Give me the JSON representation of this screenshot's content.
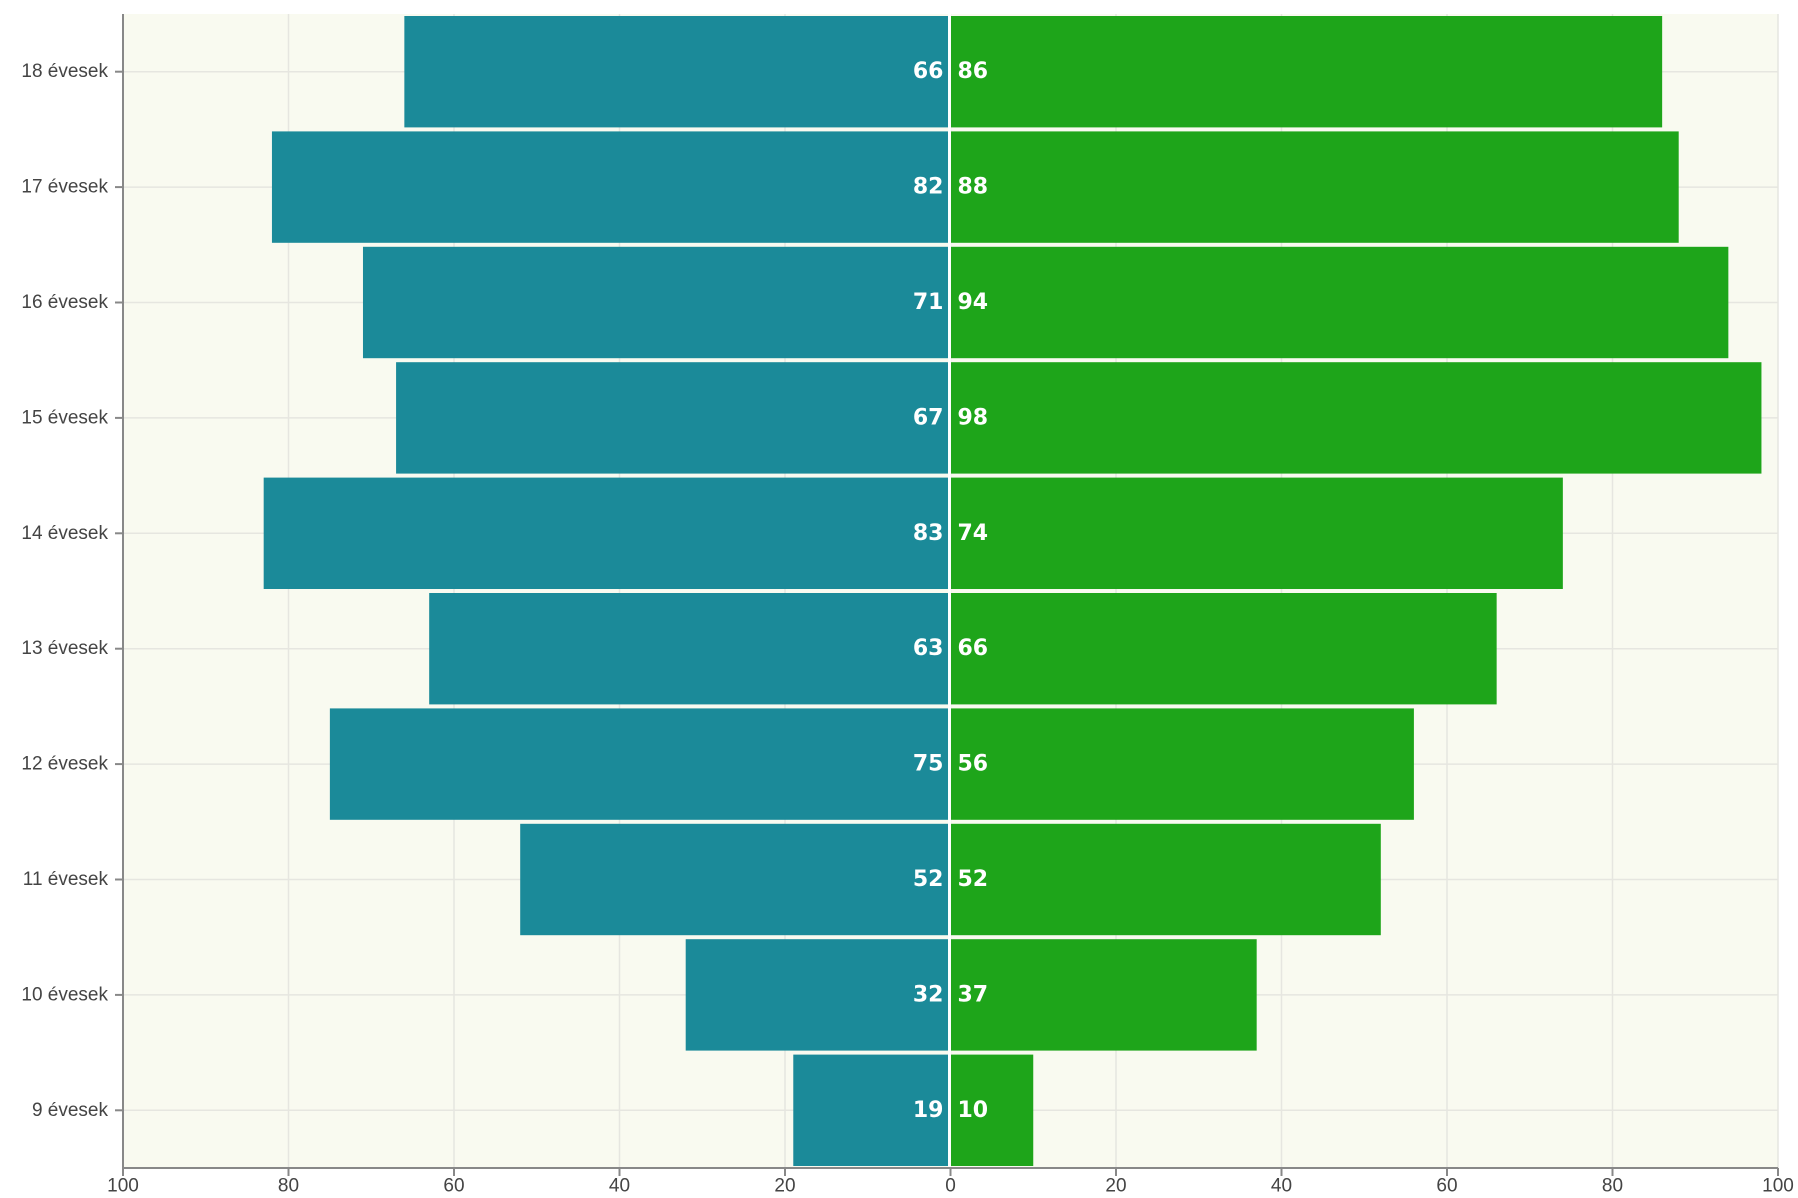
{
  "chart_data": {
    "type": "bar",
    "orientation": "horizontal",
    "layout": "population-pyramid",
    "categories": [
      "18 évesek",
      "17 évesek",
      "16 évesek",
      "15 évesek",
      "14 évesek",
      "13 évesek",
      "12 évesek",
      "11 évesek",
      "10 évesek",
      "9 évesek"
    ],
    "series": [
      {
        "side": "left",
        "color": "#1b8a99",
        "values": [
          66,
          82,
          71,
          67,
          83,
          63,
          75,
          52,
          32,
          19
        ],
        "labels": [
          "66",
          "82",
          "71",
          "67",
          "83",
          "63",
          "75",
          "52",
          "32",
          "19"
        ]
      },
      {
        "side": "right",
        "color": "#1ea51a",
        "values": [
          86,
          88,
          94,
          98,
          74,
          66,
          56,
          52,
          37,
          10
        ],
        "labels": [
          "86",
          "88",
          "94",
          "98",
          "74",
          "66",
          "56",
          "52",
          "37",
          "10"
        ]
      }
    ],
    "xlim": [
      -100,
      100
    ],
    "x_ticks": [
      -100,
      -80,
      -60,
      -40,
      -20,
      0,
      20,
      40,
      60,
      80,
      100
    ],
    "x_tick_labels": [
      "100",
      "80",
      "60",
      "40",
      "20",
      "0",
      "20",
      "40",
      "60",
      "80",
      "100"
    ],
    "title": "",
    "xlabel": "",
    "ylabel": "",
    "grid": true,
    "legend": "none",
    "plot_background": "#f9faf0"
  }
}
